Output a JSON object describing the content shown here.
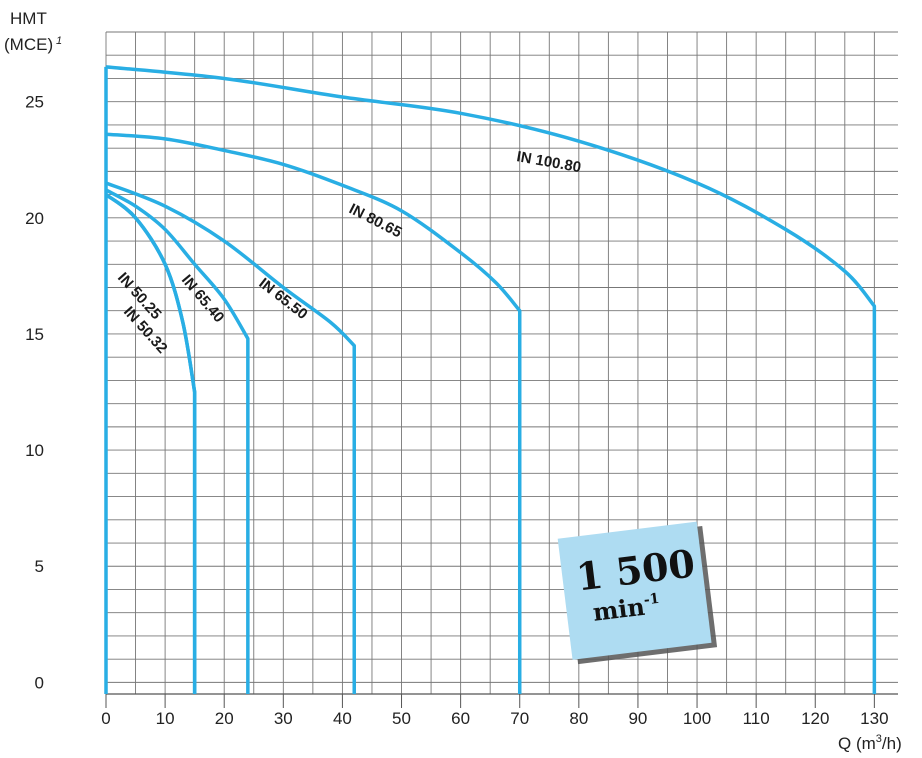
{
  "chart_data": {
    "type": "line",
    "ylabel_line1": "HMT",
    "ylabel_line2": "(MCE)",
    "ylabel_superscript": "1",
    "xlabel_main": "Q (m",
    "xlabel_sup": "3",
    "xlabel_end": "/h)",
    "xlim": [
      0,
      134
    ],
    "ylim": [
      -0.5,
      28
    ],
    "x_ticks": [
      0,
      10,
      20,
      30,
      40,
      50,
      60,
      70,
      80,
      90,
      100,
      110,
      120,
      130
    ],
    "y_ticks": [
      0,
      5,
      10,
      15,
      20,
      25
    ],
    "grid": true,
    "line_color": "#29aee4",
    "series": [
      {
        "name": "IN 50.25",
        "x": [
          0,
          5,
          10,
          13,
          15,
          15
        ],
        "y": [
          21.0,
          20.0,
          18.0,
          15.5,
          12.5,
          -0.5
        ]
      },
      {
        "name": "IN 50.32",
        "x": [
          0,
          5,
          10,
          13,
          15,
          15
        ],
        "y": [
          21.0,
          20.0,
          18.0,
          15.5,
          12.5,
          -0.5
        ]
      },
      {
        "name": "IN 65.40",
        "x": [
          0,
          5,
          10,
          15,
          20,
          24,
          24
        ],
        "y": [
          21.2,
          20.5,
          19.5,
          18.0,
          16.5,
          14.8,
          -0.5
        ]
      },
      {
        "name": "IN 65.50",
        "x": [
          0,
          10,
          20,
          30,
          38,
          42,
          42
        ],
        "y": [
          21.5,
          20.5,
          19.0,
          17.0,
          15.5,
          14.5,
          -0.5
        ]
      },
      {
        "name": "IN 80.65",
        "x": [
          0,
          10,
          20,
          30,
          40,
          50,
          60,
          66,
          70,
          70
        ],
        "y": [
          23.6,
          23.4,
          22.9,
          22.3,
          21.4,
          20.3,
          18.5,
          17.2,
          16.0,
          -0.5
        ]
      },
      {
        "name": "IN 100.80",
        "x": [
          0,
          20,
          40,
          60,
          80,
          100,
          115,
          125,
          130,
          130
        ],
        "y": [
          26.5,
          26.0,
          25.2,
          24.5,
          23.3,
          21.5,
          19.5,
          17.7,
          16.2,
          -0.5
        ]
      }
    ],
    "labels": [
      {
        "text": "IN 50.25"
      },
      {
        "text": "IN 50.32"
      },
      {
        "text": "IN 65.40"
      },
      {
        "text": "IN 65.50"
      },
      {
        "text": "IN 80.65"
      },
      {
        "text": "IN 100.80"
      }
    ],
    "badge": {
      "line1": "1 500",
      "line2": "min",
      "line2_sup": "-1",
      "color": "#aedcf2"
    }
  }
}
